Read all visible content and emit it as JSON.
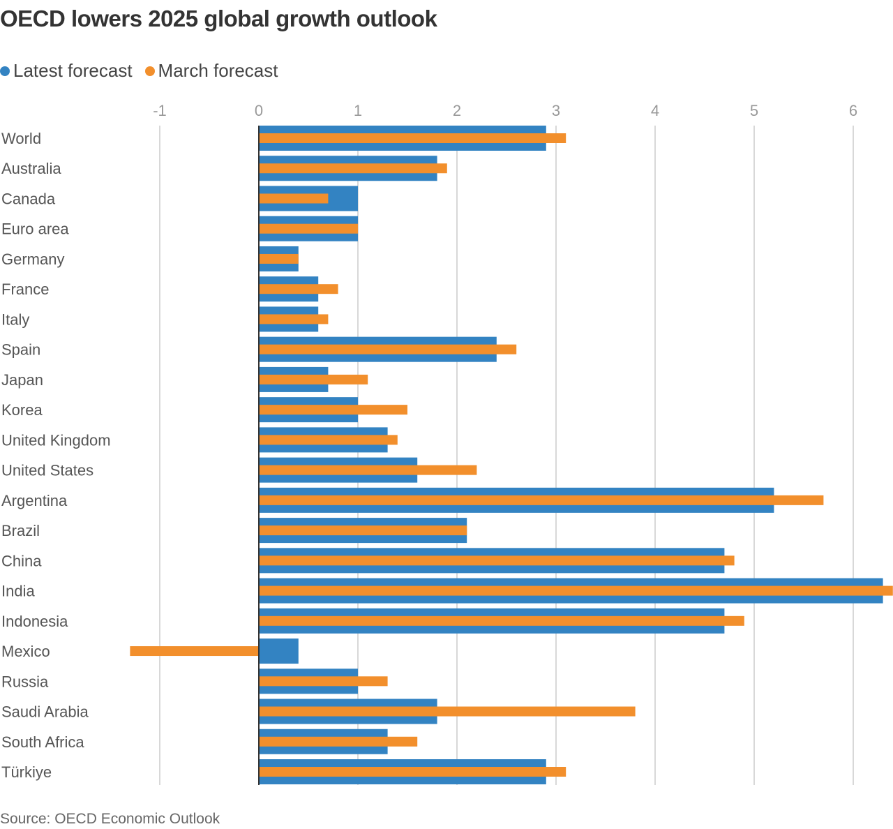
{
  "chart_data": {
    "type": "bar",
    "orientation": "horizontal",
    "title": "OECD lowers 2025 global growth outlook",
    "source": "Source: OECD Economic Outlook",
    "categories": [
      "World",
      "Australia",
      "Canada",
      "Euro area",
      "Germany",
      "France",
      "Italy",
      "Spain",
      "Japan",
      "Korea",
      "United Kingdom",
      "United States",
      "Argentina",
      "Brazil",
      "China",
      "India",
      "Indonesia",
      "Mexico",
      "Russia",
      "Saudi Arabia",
      "South Africa",
      "Türkiye"
    ],
    "series": [
      {
        "name": "Latest forecast",
        "color": "#3383c2",
        "values": [
          2.9,
          1.8,
          1.0,
          1.0,
          0.4,
          0.6,
          0.6,
          2.4,
          0.7,
          1.0,
          1.3,
          1.6,
          5.2,
          2.1,
          4.7,
          6.3,
          4.7,
          0.4,
          1.0,
          1.8,
          1.3,
          2.9
        ]
      },
      {
        "name": "March forecast",
        "color": "#f28f2c",
        "values": [
          3.1,
          1.9,
          0.7,
          1.0,
          0.4,
          0.8,
          0.7,
          2.6,
          1.1,
          1.5,
          1.4,
          2.2,
          5.7,
          2.1,
          4.8,
          6.4,
          4.9,
          -1.3,
          1.3,
          3.8,
          1.6,
          3.1
        ]
      }
    ],
    "xlim": [
      -1,
      6.4
    ],
    "ticks": [
      "-1",
      "0",
      "1",
      "2",
      "3",
      "4",
      "5",
      "6"
    ],
    "legend": "top-left",
    "grid": true
  }
}
